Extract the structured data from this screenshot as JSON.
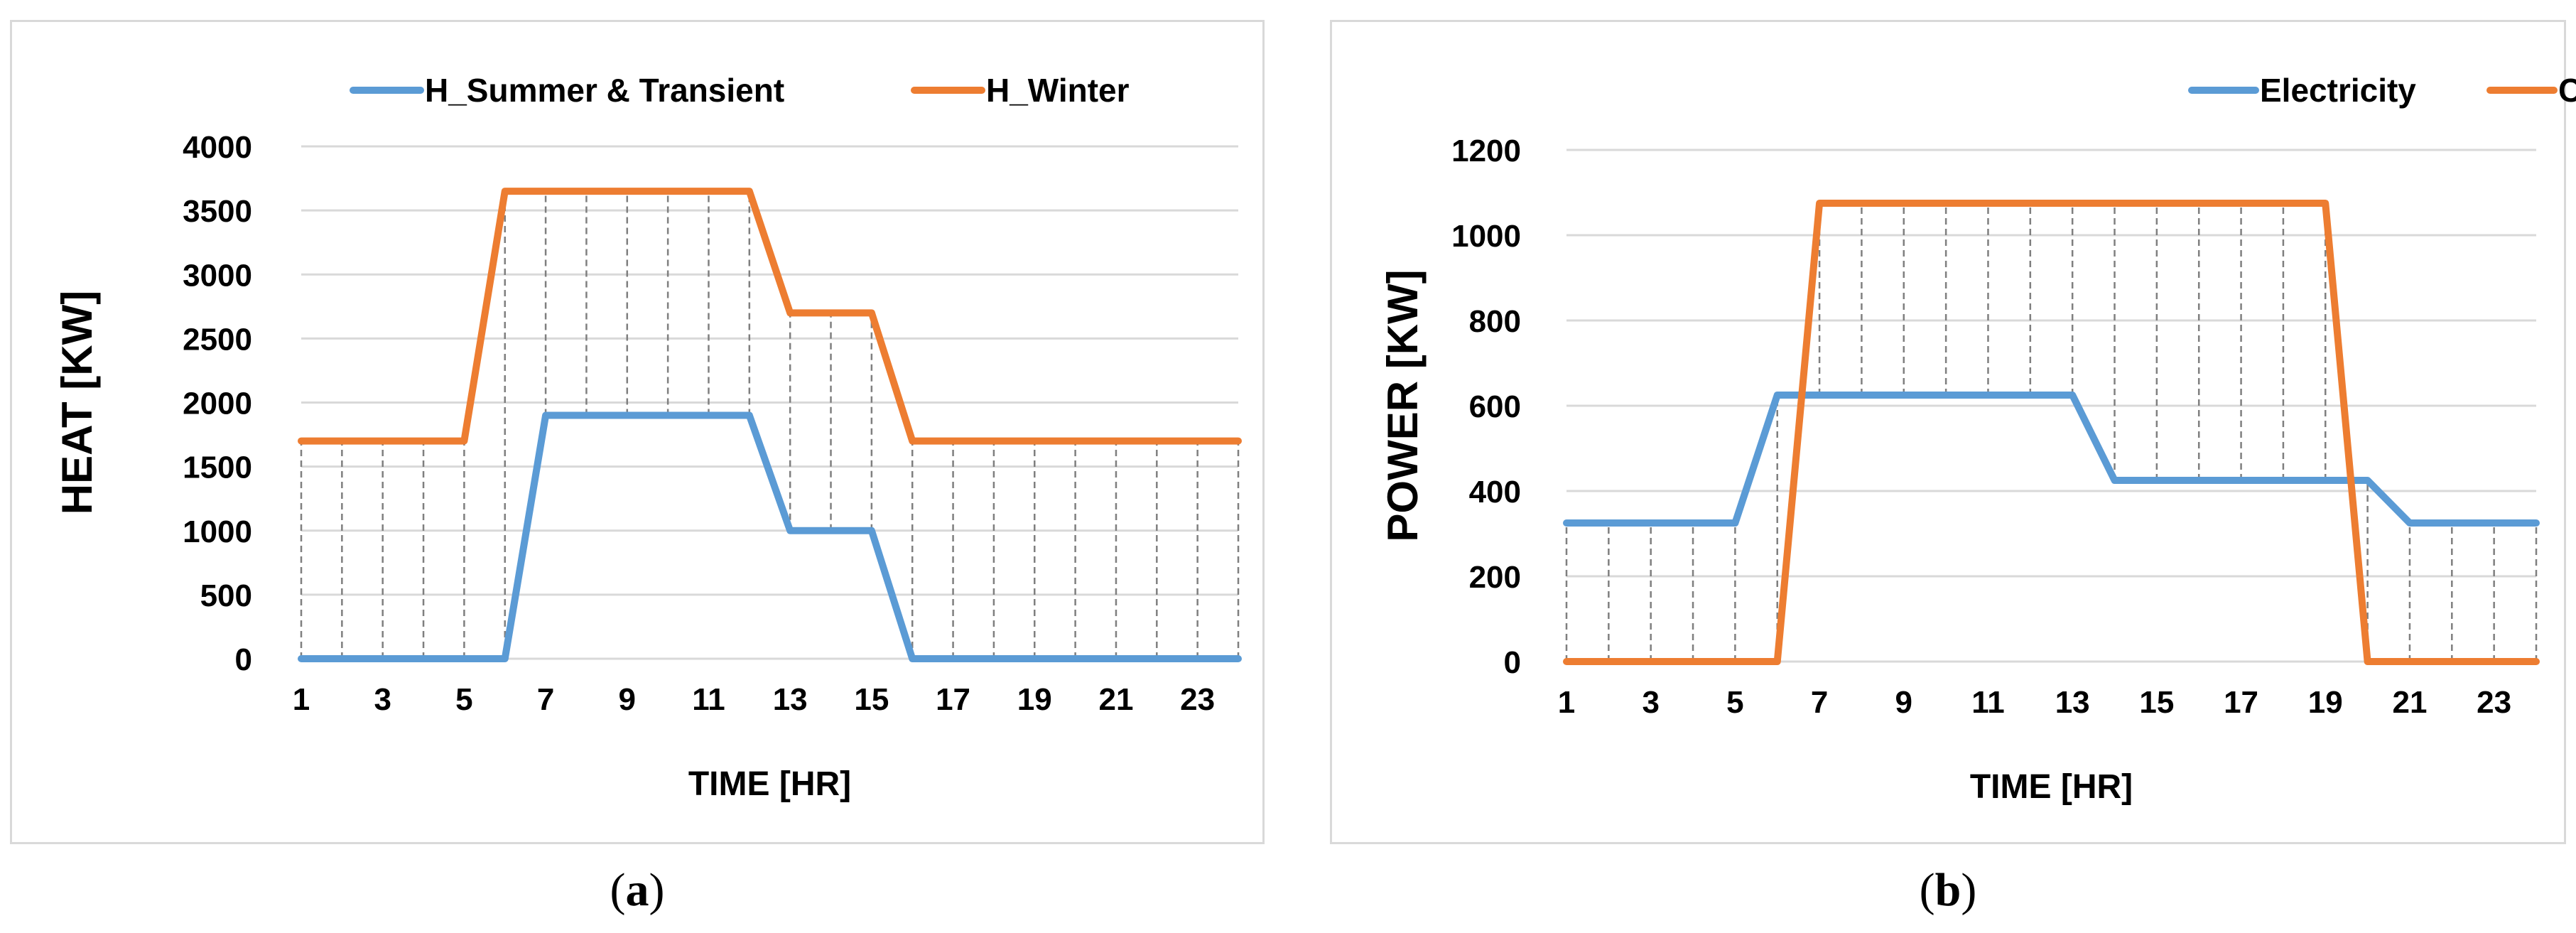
{
  "chart_data": [
    {
      "type": "line",
      "panel_label": "a",
      "xlabel": "TIME [HR]",
      "ylabel": "HEAT [KW]",
      "ylim": [
        0,
        4000
      ],
      "yticks": [
        0,
        500,
        1000,
        1500,
        2000,
        2500,
        3000,
        3500,
        4000
      ],
      "x": [
        1,
        2,
        3,
        4,
        5,
        6,
        7,
        8,
        9,
        10,
        11,
        12,
        13,
        14,
        15,
        16,
        17,
        18,
        19,
        20,
        21,
        22,
        23,
        24
      ],
      "xtick_labels": [
        "1",
        "3",
        "5",
        "7",
        "9",
        "11",
        "13",
        "15",
        "17",
        "19",
        "21",
        "23"
      ],
      "grid": "horizontal",
      "drop_lines": true,
      "legend_position": "top",
      "series": [
        {
          "name": "H_Summer & Transient",
          "color": "#5b9bd5",
          "values": [
            0,
            0,
            0,
            0,
            0,
            0,
            1900,
            1900,
            1900,
            1900,
            1900,
            1900,
            1000,
            1000,
            1000,
            0,
            0,
            0,
            0,
            0,
            0,
            0,
            0,
            0
          ]
        },
        {
          "name": "H_Winter",
          "color": "#ed7d31",
          "values": [
            1700,
            1700,
            1700,
            1700,
            1700,
            3650,
            3650,
            3650,
            3650,
            3650,
            3650,
            3650,
            2700,
            2700,
            2700,
            1700,
            1700,
            1700,
            1700,
            1700,
            1700,
            1700,
            1700,
            1700
          ]
        }
      ]
    },
    {
      "type": "line",
      "panel_label": "b",
      "xlabel": "TIME [HR]",
      "ylabel": "POWER [KW]",
      "ylim": [
        0,
        1200
      ],
      "yticks": [
        0,
        200,
        400,
        600,
        800,
        1000,
        1200
      ],
      "x": [
        1,
        2,
        3,
        4,
        5,
        6,
        7,
        8,
        9,
        10,
        11,
        12,
        13,
        14,
        15,
        16,
        17,
        18,
        19,
        20,
        21,
        22,
        23,
        24
      ],
      "xtick_labels": [
        "1",
        "3",
        "5",
        "7",
        "9",
        "11",
        "13",
        "15",
        "17",
        "19",
        "21",
        "23"
      ],
      "grid": "horizontal",
      "drop_lines": true,
      "legend_position": "top",
      "series": [
        {
          "name": "Electricity",
          "color": "#5b9bd5",
          "values": [
            325,
            325,
            325,
            325,
            325,
            625,
            625,
            625,
            625,
            625,
            625,
            625,
            625,
            425,
            425,
            425,
            425,
            425,
            425,
            425,
            325,
            325,
            325,
            325
          ]
        },
        {
          "name": "Cooling",
          "color": "#ed7d31",
          "values": [
            0,
            0,
            0,
            0,
            0,
            0,
            1075,
            1075,
            1075,
            1075,
            1075,
            1075,
            1075,
            1075,
            1075,
            1075,
            1075,
            1075,
            1075,
            0,
            0,
            0,
            0,
            0
          ]
        }
      ]
    }
  ]
}
